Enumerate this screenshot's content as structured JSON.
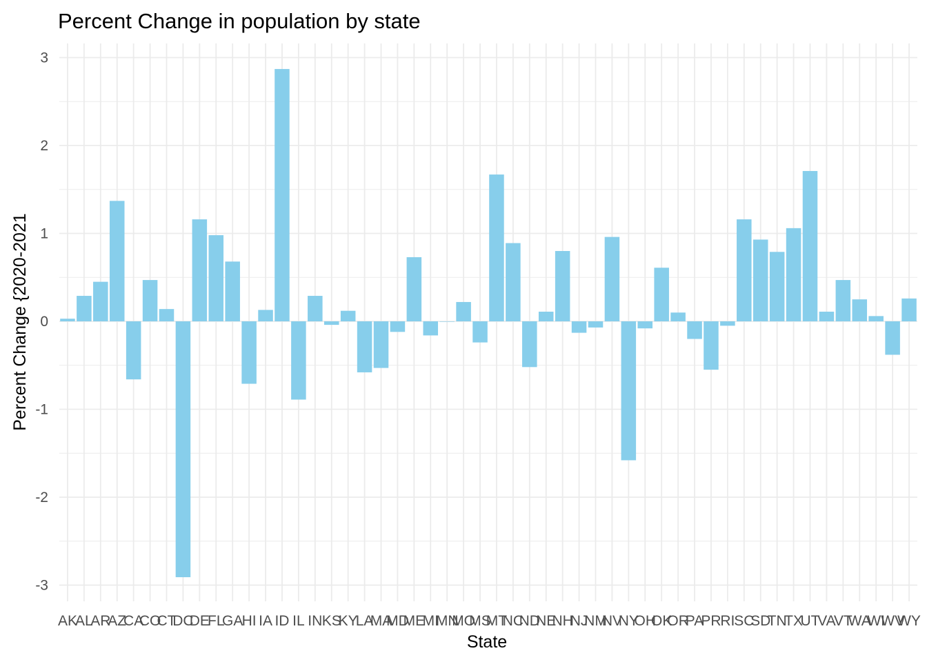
{
  "chart_data": {
    "type": "bar",
    "title": "Percent Change in population by state",
    "xlabel": "State",
    "ylabel": "Percent Change {2020-2021",
    "ylim": [
      -3.15,
      3.1
    ],
    "yticks": [
      -3,
      -2,
      -1,
      0,
      1,
      2,
      3
    ],
    "ytick_labels": [
      "-3",
      "-2",
      "-1",
      "0",
      "1",
      "2",
      "3"
    ],
    "grid": true,
    "legend": "none",
    "bar_color": "#87CEEB",
    "grid_color": "#EBEBEB",
    "categories": [
      "AK",
      "AL",
      "AR",
      "AZ",
      "CA",
      "CO",
      "CT",
      "DC",
      "DE",
      "FL",
      "GA",
      "HI",
      "IA",
      "ID",
      "IL",
      "IN",
      "KS",
      "KY",
      "LA",
      "MA",
      "MD",
      "ME",
      "MI",
      "MN",
      "MO",
      "MS",
      "MT",
      "NC",
      "ND",
      "NE",
      "NH",
      "NJ",
      "NM",
      "NV",
      "NY",
      "OH",
      "OK",
      "OR",
      "PA",
      "PR",
      "RI",
      "SC",
      "SD",
      "TN",
      "TX",
      "UT",
      "VA",
      "VT",
      "WA",
      "WI",
      "WV",
      "WY"
    ],
    "values": [
      0.03,
      0.29,
      0.45,
      1.37,
      -0.66,
      0.47,
      0.14,
      -2.91,
      1.16,
      0.98,
      0.68,
      -0.71,
      0.13,
      2.87,
      -0.89,
      0.29,
      -0.04,
      0.12,
      -0.58,
      -0.53,
      -0.12,
      0.73,
      -0.16,
      0.0,
      0.22,
      -0.24,
      1.67,
      0.89,
      -0.52,
      0.11,
      0.8,
      -0.13,
      -0.07,
      0.96,
      -1.58,
      -0.08,
      0.61,
      0.1,
      -0.2,
      -0.55,
      -0.05,
      1.16,
      0.93,
      0.79,
      1.06,
      1.71,
      0.11,
      0.47,
      0.25,
      0.06,
      -0.38,
      0.26
    ]
  }
}
